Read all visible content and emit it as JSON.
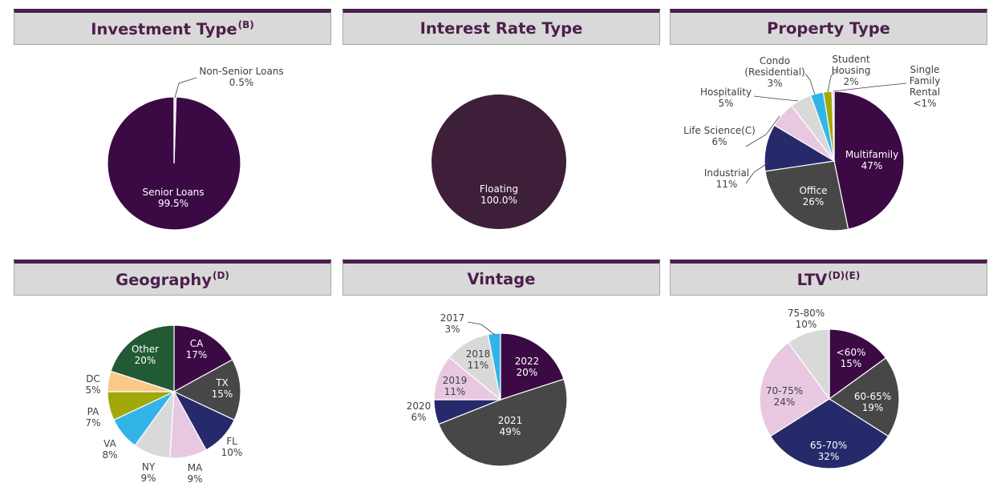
{
  "panels": {
    "investment_type": {
      "title": "Investment Type",
      "sup": "(B)"
    },
    "interest_rate_type": {
      "title": "Interest Rate Type",
      "sup": ""
    },
    "property_type": {
      "title": "Property Type",
      "sup": ""
    },
    "geography": {
      "title": "Geography",
      "sup": "(D)"
    },
    "vintage": {
      "title": "Vintage",
      "sup": ""
    },
    "ltv": {
      "title": "LTV",
      "sup": "(D)(E)"
    }
  },
  "colors": {
    "header_bg": "#d9d9d9",
    "header_accent": "#4b1f4b",
    "plum": "#3b0a45",
    "dark_plum": "#3e1f3a",
    "charcoal": "#474747",
    "navy": "#262a6a",
    "light_pink": "#e8c8e0",
    "light_gray": "#d9d9d9",
    "sky_blue": "#33b4e8",
    "olive": "#a3a80a",
    "peach": "#f9c98a",
    "forest_green": "#215a35"
  },
  "chart_data": [
    {
      "type": "pie",
      "title": "Investment Type(B)",
      "categories": [
        "Senior Loans",
        "Non-Senior Loans"
      ],
      "values": [
        99.5,
        0.5
      ],
      "labels": [
        "99.5%",
        "0.5%"
      ]
    },
    {
      "type": "pie",
      "title": "Interest Rate Type",
      "categories": [
        "Floating"
      ],
      "values": [
        100.0
      ],
      "labels": [
        "100.0%"
      ]
    },
    {
      "type": "pie",
      "title": "Property Type",
      "categories": [
        "Multifamily",
        "Office",
        "Industrial",
        "Life Science(C)",
        "Hospitality",
        "Condo (Residential)",
        "Student Housing",
        "Single Family Rental"
      ],
      "values": [
        47,
        26,
        11,
        6,
        5,
        3,
        2,
        0.5
      ],
      "labels": [
        "47%",
        "26%",
        "11%",
        "6%",
        "5%",
        "3%",
        "2%",
        "<1%"
      ]
    },
    {
      "type": "pie",
      "title": "Geography(D)",
      "categories": [
        "CA",
        "TX",
        "FL",
        "MA",
        "NY",
        "VA",
        "PA",
        "DC",
        "Other"
      ],
      "values": [
        17,
        15,
        10,
        9,
        9,
        8,
        7,
        5,
        20
      ],
      "labels": [
        "17%",
        "15%",
        "10%",
        "9%",
        "9%",
        "8%",
        "7%",
        "5%",
        "20%"
      ]
    },
    {
      "type": "pie",
      "title": "Vintage",
      "categories": [
        "2022",
        "2021",
        "2020",
        "2019",
        "2018",
        "2017"
      ],
      "values": [
        20,
        49,
        6,
        11,
        11,
        3
      ],
      "labels": [
        "20%",
        "49%",
        "6%",
        "11%",
        "11%",
        "3%"
      ]
    },
    {
      "type": "pie",
      "title": "LTV(D)(E)",
      "categories": [
        "<60%",
        "60-65%",
        "65-70%",
        "70-75%",
        "75-80%"
      ],
      "values": [
        15,
        19,
        32,
        24,
        10
      ],
      "labels": [
        "15%",
        "19%",
        "32%",
        "24%",
        "10%"
      ]
    }
  ]
}
